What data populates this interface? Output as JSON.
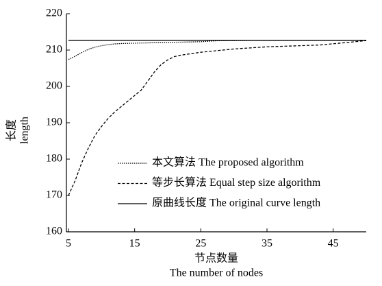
{
  "chart_data": {
    "type": "line",
    "xlabel": [
      "节点数量",
      "The number of nodes"
    ],
    "ylabel": [
      "长度",
      "length"
    ],
    "xlim": [
      5,
      50
    ],
    "xticks": [
      5,
      15,
      25,
      35,
      45
    ],
    "ylim": [
      160,
      220
    ],
    "yticks": [
      160,
      170,
      180,
      190,
      200,
      210,
      220
    ],
    "legend": "lower-right",
    "series": [
      {
        "name": "本文算法 The proposed algorithm",
        "color": "#000000",
        "linestyle": "dotted",
        "x": [
          5,
          6,
          7,
          8,
          9,
          10,
          11,
          12,
          13,
          15,
          20,
          25,
          28,
          35,
          50
        ],
        "values": [
          207.4,
          208.3,
          209.3,
          210.2,
          210.8,
          211.2,
          211.5,
          211.7,
          211.8,
          211.9,
          212.1,
          212.3,
          212.6,
          212.7,
          212.7
        ]
      },
      {
        "name": "等步长算法 Equal step size algorithm",
        "color": "#000000",
        "linestyle": "dashed",
        "x": [
          5,
          6,
          7,
          8,
          9,
          10,
          11,
          12,
          13,
          14,
          15,
          16,
          17,
          18,
          19,
          20,
          21,
          22,
          25,
          30,
          35,
          40,
          43,
          46,
          50
        ],
        "values": [
          170,
          174,
          179,
          183,
          186.5,
          189,
          191.2,
          193,
          194.5,
          196,
          197.5,
          199,
          201.5,
          204,
          206,
          207.3,
          208.2,
          208.6,
          209.4,
          210.3,
          210.9,
          211.2,
          211.4,
          211.9,
          212.6
        ]
      },
      {
        "name": "原曲线长度 The original curve length",
        "color": "#000000",
        "linestyle": "solid",
        "x": [
          5,
          50
        ],
        "values": [
          212.7,
          212.7
        ]
      }
    ]
  }
}
